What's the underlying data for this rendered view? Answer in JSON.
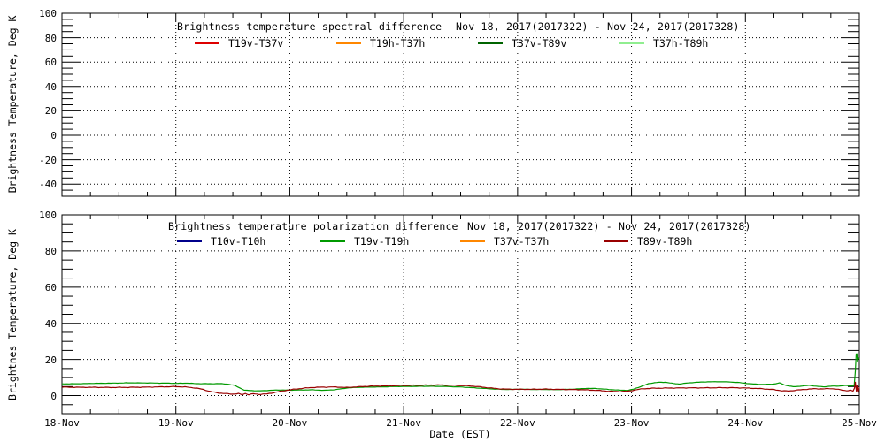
{
  "chart_data": [
    {
      "type": "line",
      "title": "Brightness temperature spectral difference",
      "date_range": "Nov 18, 2017(2017322) - Nov 24, 2017(2017328)",
      "ylabel": "Brightness Temperature, Deg K",
      "ylim": [
        -50,
        100
      ],
      "yticks": [
        -40,
        -20,
        0,
        20,
        40,
        60,
        80,
        100
      ],
      "y_tick_labels": [
        "-40",
        "-20",
        "0",
        "20",
        "40",
        "60",
        "80",
        "100"
      ],
      "xlim_days": [
        18,
        25
      ],
      "x_major_ticks": [
        18,
        19,
        20,
        21,
        22,
        23,
        24,
        25
      ],
      "grid_days": [
        19,
        20,
        21,
        22,
        23,
        24
      ],
      "grid": true,
      "legend_position": "top-inside",
      "legend": [
        {
          "label": "T19v-T37v",
          "color": "#dd0000"
        },
        {
          "label": "T19h-T37h",
          "color": "#ff8700"
        },
        {
          "label": "T37v-T89v",
          "color": "#006400"
        },
        {
          "label": "T37h-T89h",
          "color": "#90ee90"
        }
      ],
      "series": [
        {
          "name": "T19v-T37v",
          "color": "#dd0000",
          "points": []
        },
        {
          "name": "T19h-T37h",
          "color": "#ff8700",
          "points": []
        },
        {
          "name": "T37v-T89v",
          "color": "#006400",
          "points": []
        },
        {
          "name": "T37h-T89h",
          "color": "#90ee90",
          "points": []
        }
      ]
    },
    {
      "type": "line",
      "title": "Brightness temperature polarization difference",
      "date_range": "Nov 18, 2017(2017322) - Nov 24, 2017(2017328)",
      "ylabel": "Brightnes Temperature, Deg K",
      "xlabel": "Date (EST)",
      "ylim": [
        -10,
        100
      ],
      "yticks": [
        0,
        20,
        40,
        60,
        80,
        100
      ],
      "y_tick_labels": [
        "0",
        "20",
        "40",
        "60",
        "80",
        "100"
      ],
      "xlim_days": [
        18,
        25
      ],
      "x_major_ticks": [
        18,
        19,
        20,
        21,
        22,
        23,
        24,
        25
      ],
      "x_tick_labels": [
        "18-Nov",
        "19-Nov",
        "20-Nov",
        "21-Nov",
        "22-Nov",
        "23-Nov",
        "24-Nov",
        "25-Nov"
      ],
      "grid_days": [
        19,
        20,
        21,
        22,
        23,
        24
      ],
      "grid": true,
      "legend_position": "top-inside",
      "legend": [
        {
          "label": "T10v-T10h",
          "color": "#00008b"
        },
        {
          "label": "T19v-T19h",
          "color": "#009900"
        },
        {
          "label": "T37v-T37h",
          "color": "#ff8700"
        },
        {
          "label": "T89v-T89h",
          "color": "#990000"
        }
      ],
      "series": [
        {
          "name": "T10v-T10h",
          "color": "#00008b",
          "points": []
        },
        {
          "name": "T19v-T19h",
          "color": "#009900",
          "points": [
            [
              18.0,
              6.5
            ],
            [
              18.15,
              6.6
            ],
            [
              18.3,
              6.8
            ],
            [
              18.45,
              6.9
            ],
            [
              18.6,
              7.1
            ],
            [
              18.75,
              7.0
            ],
            [
              18.9,
              6.9
            ],
            [
              19.0,
              6.8
            ],
            [
              19.1,
              6.9
            ],
            [
              19.2,
              6.6
            ],
            [
              19.3,
              6.6
            ],
            [
              19.4,
              6.6
            ],
            [
              19.45,
              6.4
            ],
            [
              19.52,
              5.6
            ],
            [
              19.56,
              4.3
            ],
            [
              19.6,
              3.0
            ],
            [
              19.65,
              2.8
            ],
            [
              19.72,
              2.6
            ],
            [
              19.8,
              2.8
            ],
            [
              19.9,
              3.1
            ],
            [
              20.0,
              3.0
            ],
            [
              20.1,
              3.1
            ],
            [
              20.2,
              3.2
            ],
            [
              20.3,
              2.9
            ],
            [
              20.4,
              3.3
            ],
            [
              20.5,
              4.2
            ],
            [
              20.6,
              4.6
            ],
            [
              20.75,
              4.8
            ],
            [
              20.9,
              5.0
            ],
            [
              21.05,
              5.1
            ],
            [
              21.2,
              5.2
            ],
            [
              21.35,
              5.1
            ],
            [
              21.5,
              4.8
            ],
            [
              21.6,
              4.4
            ],
            [
              21.7,
              4.0
            ],
            [
              21.8,
              3.6
            ],
            [
              21.9,
              3.4
            ],
            [
              22.05,
              3.5
            ],
            [
              22.2,
              3.4
            ],
            [
              22.35,
              3.3
            ],
            [
              22.5,
              3.6
            ],
            [
              22.6,
              4.0
            ],
            [
              22.7,
              3.9
            ],
            [
              22.8,
              3.4
            ],
            [
              22.9,
              3.0
            ],
            [
              22.97,
              2.9
            ],
            [
              23.02,
              3.6
            ],
            [
              23.08,
              5.0
            ],
            [
              23.15,
              6.6
            ],
            [
              23.22,
              7.3
            ],
            [
              23.3,
              7.4
            ],
            [
              23.37,
              6.7
            ],
            [
              23.42,
              6.4
            ],
            [
              23.48,
              6.9
            ],
            [
              23.55,
              7.3
            ],
            [
              23.65,
              7.6
            ],
            [
              23.75,
              7.7
            ],
            [
              23.85,
              7.6
            ],
            [
              23.95,
              7.2
            ],
            [
              24.05,
              6.5
            ],
            [
              24.15,
              6.2
            ],
            [
              24.25,
              6.4
            ],
            [
              24.3,
              7.0
            ],
            [
              24.36,
              5.6
            ],
            [
              24.42,
              4.9
            ],
            [
              24.5,
              5.3
            ],
            [
              24.56,
              5.7
            ],
            [
              24.62,
              5.2
            ],
            [
              24.68,
              4.9
            ],
            [
              24.75,
              5.2
            ],
            [
              24.82,
              5.3
            ],
            [
              24.88,
              5.6
            ],
            [
              24.93,
              5.4
            ],
            [
              24.955,
              5.5
            ],
            [
              24.965,
              13.5
            ],
            [
              24.972,
              22.5
            ],
            [
              24.978,
              23.3
            ],
            [
              24.984,
              18.5
            ],
            [
              24.99,
              20.8
            ],
            [
              25.0,
              20.3
            ]
          ]
        },
        {
          "name": "T37v-T37h",
          "color": "#ff8700",
          "points": []
        },
        {
          "name": "T89v-T89h",
          "color": "#990000",
          "points": [
            [
              18.0,
              4.7
            ],
            [
              18.15,
              4.6
            ],
            [
              18.3,
              4.6
            ],
            [
              18.45,
              4.5
            ],
            [
              18.6,
              4.6
            ],
            [
              18.75,
              4.7
            ],
            [
              18.9,
              4.9
            ],
            [
              19.0,
              5.0
            ],
            [
              19.08,
              4.8
            ],
            [
              19.15,
              4.4
            ],
            [
              19.22,
              3.7
            ],
            [
              19.3,
              2.3
            ],
            [
              19.38,
              1.4
            ],
            [
              19.45,
              1.0
            ],
            [
              19.5,
              0.8
            ],
            [
              19.55,
              1.1
            ],
            [
              19.58,
              0.5
            ],
            [
              19.61,
              1.2
            ],
            [
              19.64,
              0.5
            ],
            [
              19.68,
              1.0
            ],
            [
              19.73,
              0.7
            ],
            [
              19.8,
              0.9
            ],
            [
              19.86,
              1.6
            ],
            [
              19.92,
              2.4
            ],
            [
              19.98,
              3.0
            ],
            [
              20.05,
              3.6
            ],
            [
              20.12,
              4.1
            ],
            [
              20.2,
              4.5
            ],
            [
              20.3,
              4.7
            ],
            [
              20.4,
              4.8
            ],
            [
              20.5,
              4.5
            ],
            [
              20.6,
              4.9
            ],
            [
              20.7,
              5.2
            ],
            [
              20.85,
              5.4
            ],
            [
              21.0,
              5.6
            ],
            [
              21.15,
              5.8
            ],
            [
              21.3,
              5.9
            ],
            [
              21.45,
              5.7
            ],
            [
              21.55,
              5.5
            ],
            [
              21.65,
              5.0
            ],
            [
              21.75,
              4.3
            ],
            [
              21.85,
              3.7
            ],
            [
              21.95,
              3.5
            ],
            [
              22.1,
              3.5
            ],
            [
              22.25,
              3.6
            ],
            [
              22.4,
              3.4
            ],
            [
              22.55,
              3.3
            ],
            [
              22.7,
              2.9
            ],
            [
              22.8,
              2.4
            ],
            [
              22.9,
              2.2
            ],
            [
              22.97,
              2.4
            ],
            [
              23.03,
              3.1
            ],
            [
              23.1,
              3.8
            ],
            [
              23.2,
              4.1
            ],
            [
              23.35,
              4.2
            ],
            [
              23.5,
              4.3
            ],
            [
              23.65,
              4.3
            ],
            [
              23.8,
              4.4
            ],
            [
              23.95,
              4.3
            ],
            [
              24.05,
              4.1
            ],
            [
              24.15,
              3.8
            ],
            [
              24.25,
              3.3
            ],
            [
              24.32,
              2.7
            ],
            [
              24.38,
              2.5
            ],
            [
              24.45,
              3.0
            ],
            [
              24.52,
              3.4
            ],
            [
              24.6,
              3.8
            ],
            [
              24.68,
              3.7
            ],
            [
              24.75,
              3.9
            ],
            [
              24.8,
              3.6
            ],
            [
              24.85,
              3.0
            ],
            [
              24.89,
              2.7
            ],
            [
              24.92,
              3.0
            ],
            [
              24.945,
              2.4
            ],
            [
              24.958,
              4.2
            ],
            [
              24.965,
              7.6
            ],
            [
              24.97,
              4.8
            ],
            [
              24.975,
              2.0
            ],
            [
              24.98,
              6.0
            ],
            [
              24.985,
              3.2
            ],
            [
              24.99,
              1.6
            ],
            [
              24.995,
              3.4
            ],
            [
              25.0,
              4.6
            ]
          ]
        }
      ]
    }
  ]
}
